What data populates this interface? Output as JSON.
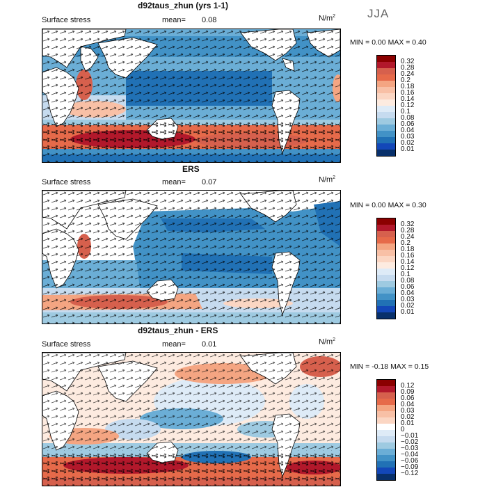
{
  "season": "JJA",
  "panels": [
    {
      "title": "d92taus_zhun (yrs 1-1)",
      "subtitle": "Surface stress",
      "mean_label": "mean=",
      "mean_value": "0.08",
      "unit": "N/m",
      "unit_sup": "2",
      "minmax": "MIN =    0.00 MAX =    0.40",
      "colorbar": {
        "colors": [
          "#8b0000",
          "#b2182b",
          "#d6604d",
          "#e66a4a",
          "#f4a582",
          "#f8c0a6",
          "#fbd6c3",
          "#fdebe0",
          "#deebf7",
          "#c6dbef",
          "#9ecae1",
          "#6baed6",
          "#4292c6",
          "#2171b5",
          "#1347b8",
          "#08306b"
        ],
        "ticks": [
          "0.32",
          "0.28",
          "0.24",
          "0.2",
          "0.18",
          "0.16",
          "0.14",
          "0.12",
          "0.1",
          "0.08",
          "0.06",
          "0.04",
          "0.03",
          "0.02",
          "0.01"
        ]
      }
    },
    {
      "title": "ERS",
      "subtitle": "Surface stress",
      "mean_label": "mean=",
      "mean_value": "0.07",
      "unit": "N/m",
      "unit_sup": "2",
      "minmax": "MIN =    0.00 MAX =    0.30",
      "colorbar": {
        "colors": [
          "#8b0000",
          "#b2182b",
          "#d6604d",
          "#e66a4a",
          "#f4a582",
          "#f8c0a6",
          "#fbd6c3",
          "#fdebe0",
          "#deebf7",
          "#c6dbef",
          "#9ecae1",
          "#6baed6",
          "#4292c6",
          "#2171b5",
          "#1347b8",
          "#08306b"
        ],
        "ticks": [
          "0.32",
          "0.28",
          "0.24",
          "0.2",
          "0.18",
          "0.16",
          "0.14",
          "0.12",
          "0.1",
          "0.08",
          "0.06",
          "0.04",
          "0.03",
          "0.02",
          "0.01"
        ]
      }
    },
    {
      "title": "d92taus_zhun - ERS",
      "subtitle": "Surface stress",
      "mean_label": "mean=",
      "mean_value": "0.01",
      "unit": "N/m",
      "unit_sup": "2",
      "minmax": "MIN =  -0.18 MAX =    0.15",
      "colorbar": {
        "colors": [
          "#8b0000",
          "#b2182b",
          "#d6604d",
          "#e66a4a",
          "#f4a582",
          "#f8c0a6",
          "#fbd6c3",
          "#ffffff",
          "#deebf7",
          "#c6dbef",
          "#9ecae1",
          "#6baed6",
          "#4292c6",
          "#2171b5",
          "#1347b8",
          "#08306b"
        ],
        "ticks": [
          "0.12",
          "0.09",
          "0.06",
          "0.04",
          "0.03",
          "0.02",
          "0.01",
          "0",
          "−0.01",
          "−0.02",
          "−0.03",
          "−0.04",
          "−0.06",
          "−0.09",
          "−0.12"
        ]
      }
    }
  ]
}
